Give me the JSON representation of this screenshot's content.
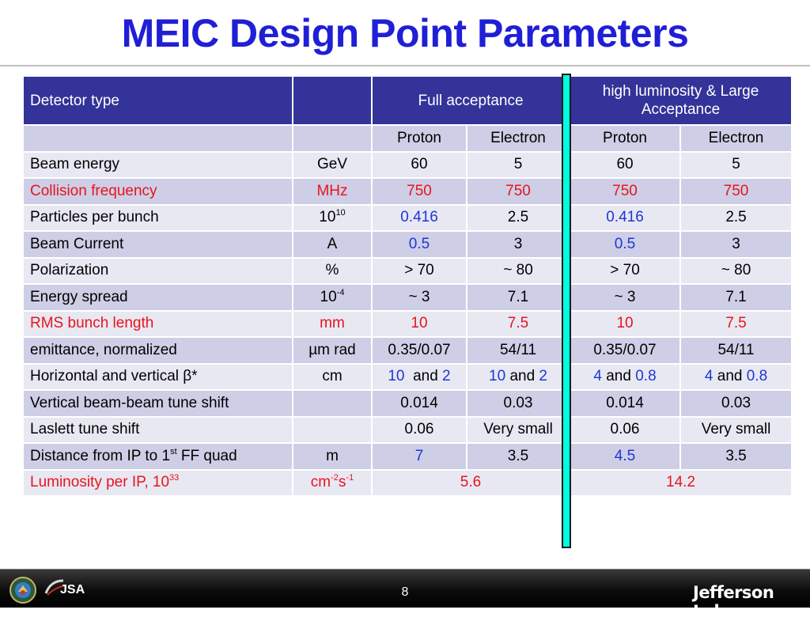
{
  "title": "MEIC Design Point Parameters",
  "header": {
    "detector_type": "Detector type",
    "unit": "",
    "full_acceptance": "Full acceptance",
    "high_lum": "high luminosity & Large Acceptance"
  },
  "subheader": {
    "c1": "Proton",
    "c2": "Electron",
    "c3": "Proton",
    "c4": "Electron"
  },
  "rows": {
    "beam_energy": {
      "label": "Beam energy",
      "unit": "GeV",
      "v": [
        "60",
        "5",
        "60",
        "5"
      ]
    },
    "collision_freq": {
      "label": "Collision frequency",
      "unit": "MHz",
      "v": [
        "750",
        "750",
        "750",
        "750"
      ]
    },
    "particles": {
      "label": "Particles per bunch",
      "unit_base": "10",
      "unit_sup": "10",
      "v": [
        "0.416",
        "2.5",
        "0.416",
        "2.5"
      ]
    },
    "beam_current": {
      "label": "Beam Current",
      "unit": "A",
      "v": [
        "0.5",
        "3",
        "0.5",
        "3"
      ]
    },
    "polarization": {
      "label": "Polarization",
      "unit": "%",
      "v": [
        "> 70",
        "~ 80",
        "> 70",
        "~ 80"
      ]
    },
    "energy_spread": {
      "label": "Energy spread",
      "unit_base": "10",
      "unit_sup": "-4",
      "v": [
        "~ 3",
        "7.1",
        "~ 3",
        "7.1"
      ]
    },
    "rms_bunch": {
      "label": "RMS bunch length",
      "unit": "mm",
      "v": [
        "10",
        "7.5",
        "10",
        "7.5"
      ]
    },
    "emittance": {
      "label": "emittance, normalized",
      "unit": "µm rad",
      "v": [
        "0.35/0.07",
        "54/11",
        "0.35/0.07",
        "54/11"
      ]
    },
    "beta_star": {
      "label": "Horizontal and vertical β*",
      "unit": "cm",
      "and": "and",
      "c1": [
        "10",
        "2"
      ],
      "c2": [
        "10",
        "2"
      ],
      "c3": [
        "4",
        "0.8"
      ],
      "c4": [
        "4",
        "0.8"
      ]
    },
    "vert_tune": {
      "label": "Vertical beam-beam tune shift",
      "unit": "",
      "v": [
        "0.014",
        "0.03",
        "0.014",
        "0.03"
      ]
    },
    "laslett": {
      "label": "Laslett tune shift",
      "unit": "",
      "v": [
        "0.06",
        "Very small",
        "0.06",
        "Very small"
      ]
    },
    "distance": {
      "label_pre": "Distance from IP to 1",
      "label_sup": "st",
      "label_post": " FF quad",
      "unit": "m",
      "v": [
        "7",
        "3.5",
        "4.5",
        "3.5"
      ]
    },
    "luminosity": {
      "label_pre": "Luminosity per IP, 10",
      "label_sup": "33",
      "unit_a": "cm",
      "unit_a_sup": "-2",
      "unit_b": "s",
      "unit_b_sup": "-1",
      "full": "5.6",
      "high": "14.2"
    }
  },
  "footer": {
    "page": "8",
    "brand": "Jefferson Lab",
    "jsa": "JSA"
  },
  "colors": {
    "title": "#1f1fd6",
    "header_bg": "#333399",
    "red": "#e8141c",
    "blue": "#1c37d6",
    "divider": "#00ffe1"
  }
}
